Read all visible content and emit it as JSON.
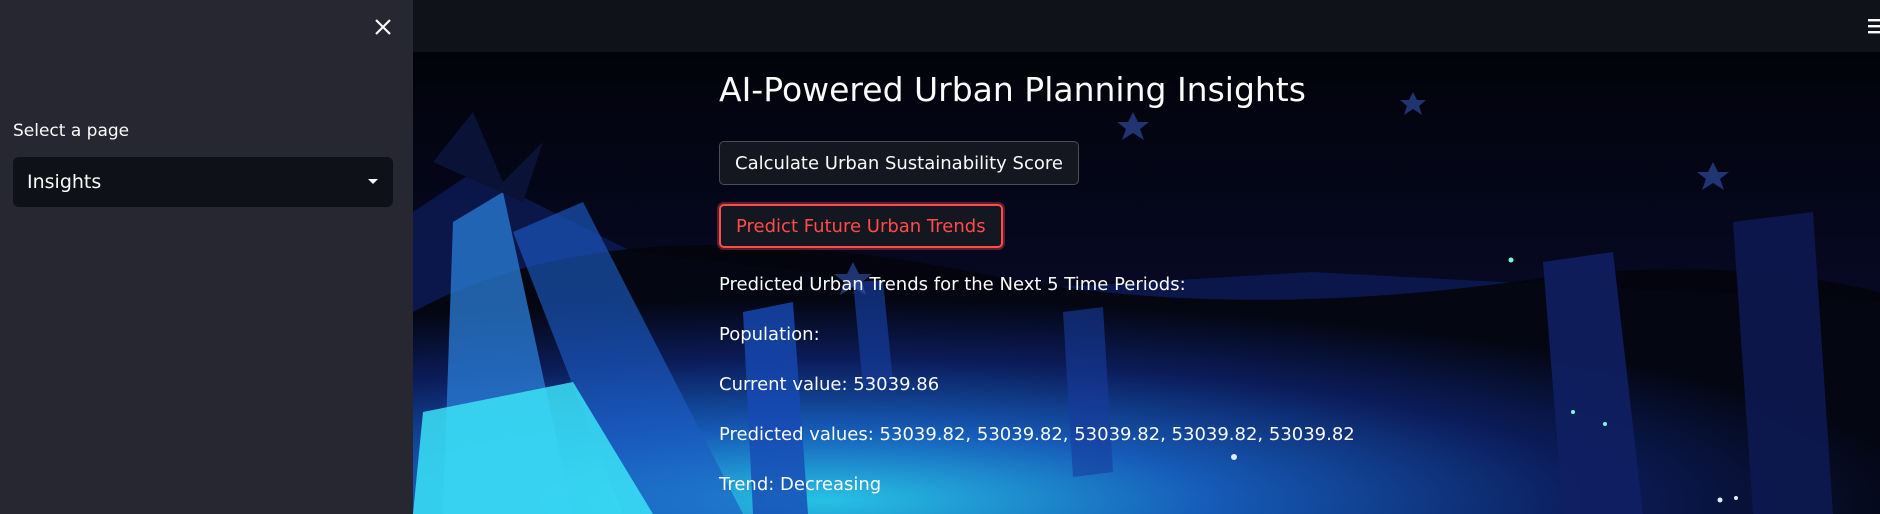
{
  "sidebar": {
    "close_label": "✕",
    "select_label": "Select a page",
    "selected_page": "Insights"
  },
  "main": {
    "title": "AI-Powered Urban Planning Insights",
    "buttons": {
      "score_label": "Calculate Urban Sustainability Score",
      "predict_label": "Predict Future Urban Trends"
    },
    "results": {
      "heading": "Predicted Urban Trends for the Next 5 Time Periods:",
      "metric_label": "Population:",
      "current_value": "Current value: 53039.86",
      "predicted_values": "Predicted values: 53039.82, 53039.82, 53039.82, 53039.82, 53039.82",
      "trend": "Trend: Decreasing"
    }
  },
  "colors": {
    "sidebar_bg": "#262730",
    "app_bg": "#0e1117",
    "accent_red": "#ff4b4b",
    "text": "#fafafa"
  },
  "icons": {
    "close": "close-icon",
    "dropdown": "chevron-down-icon",
    "menu": "hamburger-menu-icon"
  }
}
